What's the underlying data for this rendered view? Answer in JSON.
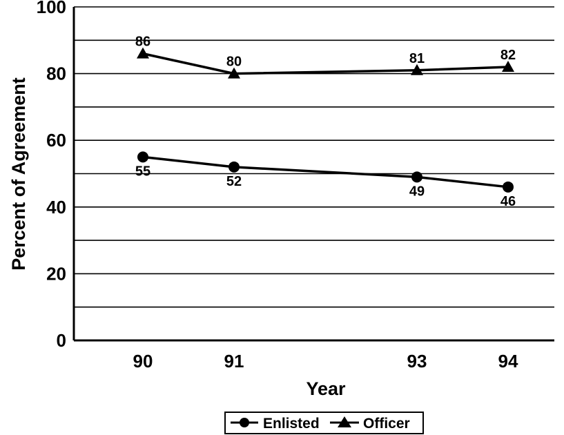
{
  "chart_data": {
    "type": "line",
    "title": "",
    "xlabel": "Year",
    "ylabel": "Percent of Agreement",
    "ylim": [
      0,
      100
    ],
    "yticks": [
      0,
      20,
      40,
      60,
      80,
      100
    ],
    "grid": true,
    "x": [
      90,
      91,
      93,
      94
    ],
    "xtick_labels": [
      "90",
      "91",
      "93",
      "94"
    ],
    "legend_position": "bottom-center",
    "series": [
      {
        "name": "Enlisted",
        "marker": "circle",
        "values": [
          55,
          52,
          49,
          46
        ],
        "labels": [
          "55",
          "52",
          "49",
          "46"
        ]
      },
      {
        "name": "Officer",
        "marker": "triangle",
        "values": [
          86,
          80,
          81,
          82
        ],
        "labels": [
          "86",
          "80",
          "81",
          "82"
        ]
      }
    ]
  }
}
